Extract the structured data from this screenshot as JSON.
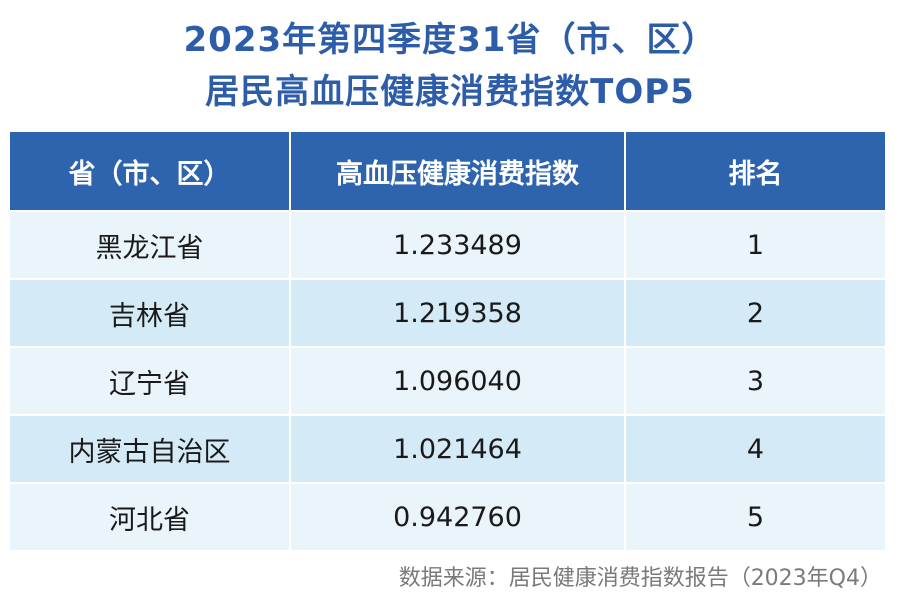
{
  "chart_data": {
    "type": "table",
    "title_lines": [
      "2023年第四季度31省（市、区）",
      "居民高血压健康消费指数TOP5"
    ],
    "columns": [
      "省（市、区）",
      "高血压健康消费指数",
      "排名"
    ],
    "rows": [
      {
        "region": "黑龙江省",
        "index": "1.233489",
        "rank": "1"
      },
      {
        "region": "吉林省",
        "index": "1.219358",
        "rank": "2"
      },
      {
        "region": "辽宁省",
        "index": "1.096040",
        "rank": "3"
      },
      {
        "region": "内蒙古自治区",
        "index": "1.021464",
        "rank": "4"
      },
      {
        "region": "河北省",
        "index": "0.942760",
        "rank": "5"
      }
    ],
    "source": "数据来源：居民健康消费指数报告（2023年Q4）"
  },
  "colors": {
    "title": "#2d5da8",
    "header_bg": "#2e64ae",
    "row_light": "#eaf4fb",
    "row_dark": "#d5eaf7",
    "source_text": "#7a7a7a"
  }
}
